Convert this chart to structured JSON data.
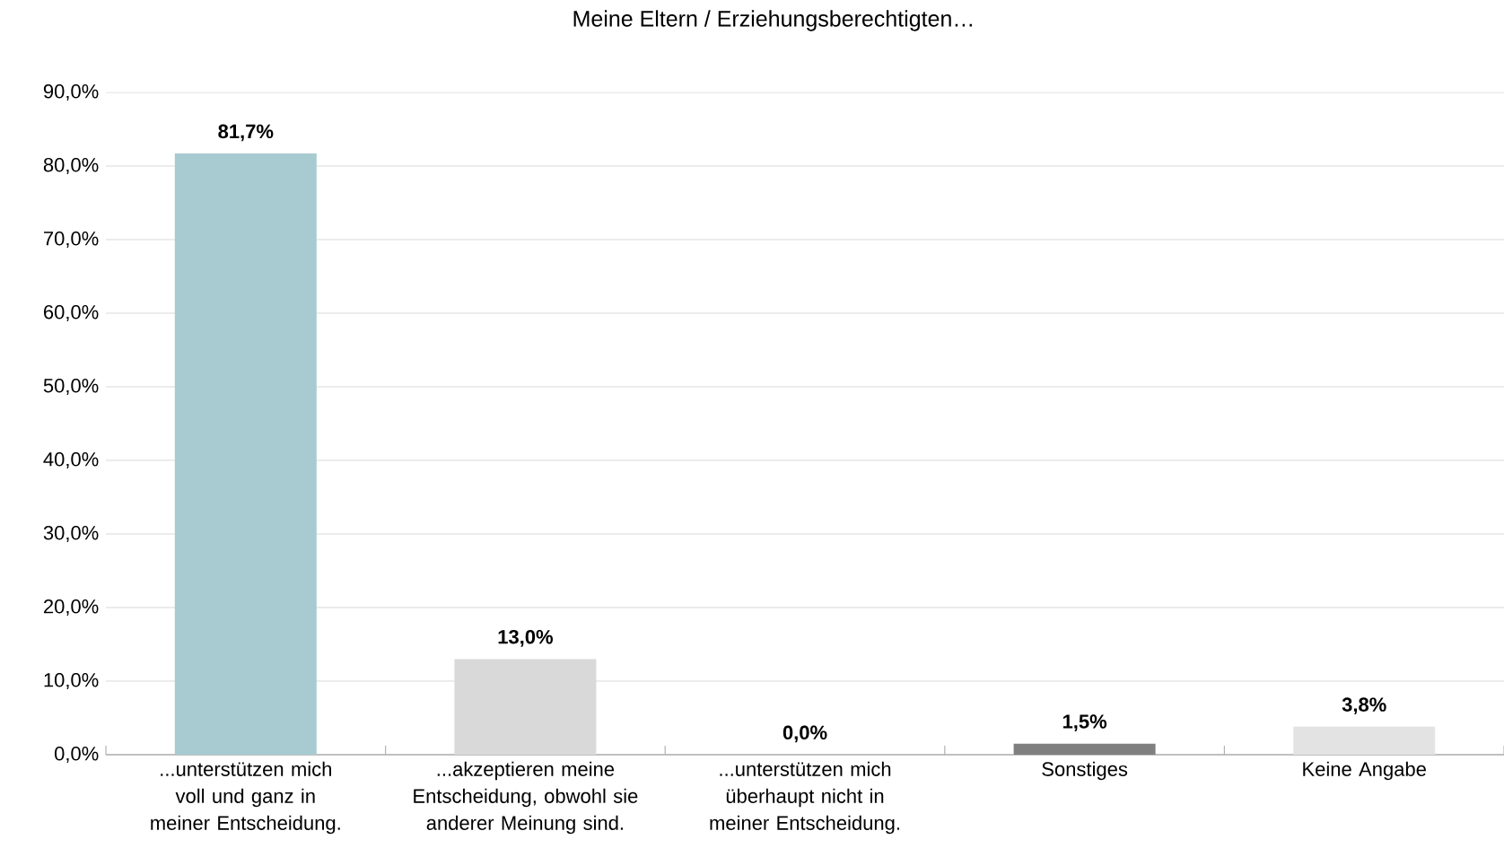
{
  "chart_data": {
    "type": "bar",
    "title": "Meine Eltern / Erziehungsberechtigten…",
    "categories": [
      "...unterstützen mich voll und ganz in meiner Entscheidung.",
      "...akzeptieren meine Entscheidung, obwohl sie anderer Meinung sind.",
      "...unterstützen mich überhaupt nicht in meiner Entscheidung.",
      "Sonstiges",
      "Keine Angabe"
    ],
    "values": [
      81.7,
      13.0,
      0.0,
      1.5,
      3.8
    ],
    "colors": [
      "#a7cbd0",
      "#d9d9d9",
      null,
      "#7f7f7f",
      "#e3e3e3"
    ],
    "value_labels": [
      "81,7%",
      "13,0%",
      "0,0%",
      "1,5%",
      "3,8%"
    ],
    "ylim": [
      0,
      90
    ],
    "yticks": [
      {
        "value": 0,
        "label": "0,0%"
      },
      {
        "value": 10,
        "label": "10,0%"
      },
      {
        "value": 20,
        "label": "20,0%"
      },
      {
        "value": 30,
        "label": "30,0%"
      },
      {
        "value": 40,
        "label": "40,0%"
      },
      {
        "value": 50,
        "label": "50,0%"
      },
      {
        "value": 60,
        "label": "60,0%"
      },
      {
        "value": 70,
        "label": "70,0%"
      },
      {
        "value": 80,
        "label": "80,0%"
      },
      {
        "value": 90,
        "label": "90,0%"
      }
    ],
    "grid": "y"
  }
}
